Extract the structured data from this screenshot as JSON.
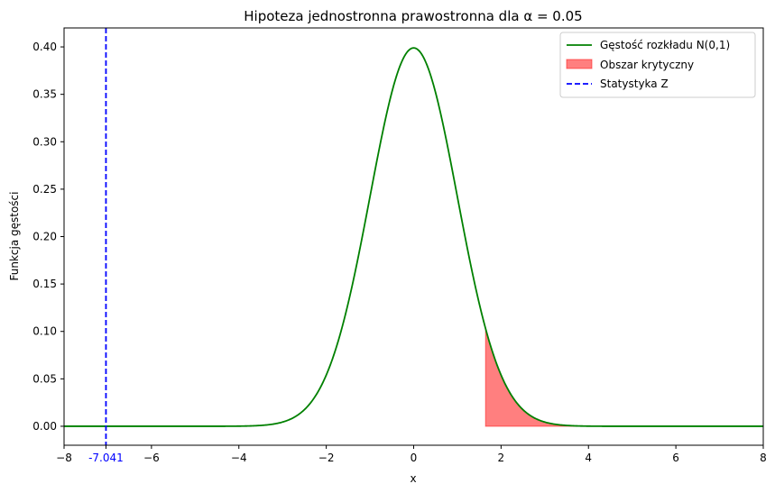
{
  "chart_data": {
    "type": "line",
    "title": "Hipoteza jednostronna prawostronna dla α = 0.05",
    "xlabel": "x",
    "ylabel": "Funkcja gęstości",
    "xlim": [
      -8,
      8
    ],
    "ylim": [
      -0.02,
      0.42
    ],
    "xticks": [
      "−8",
      "−6",
      "−4",
      "−2",
      "0",
      "2",
      "4",
      "6",
      "8"
    ],
    "yticks": [
      "0.00",
      "0.05",
      "0.10",
      "0.15",
      "0.20",
      "0.25",
      "0.30",
      "0.35",
      "0.40"
    ],
    "legend_position": "top-right",
    "series": [
      {
        "name": "Gęstość rozkładu N(0,1)",
        "kind": "line",
        "color": "#008000",
        "function": "normal-pdf",
        "mean": 0,
        "std": 1
      },
      {
        "name": "Obszar krytyczny",
        "kind": "area",
        "color": "#ff0000",
        "opacity": 0.5,
        "from_x": 1.645,
        "to_x": 8
      },
      {
        "name": "Statystyka Z",
        "kind": "vline",
        "color": "#0000ff",
        "style": "dashed",
        "x": -7.041
      }
    ],
    "annotations": [
      {
        "text": "-7.041",
        "x": -7.041,
        "color": "#0000ff"
      }
    ]
  }
}
